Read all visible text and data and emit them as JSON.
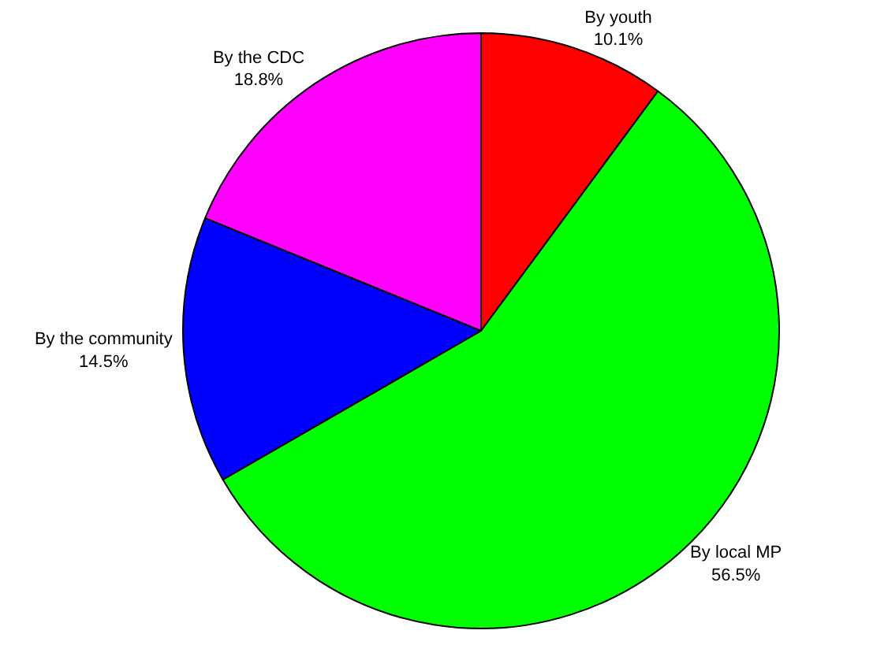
{
  "chart_data": {
    "type": "pie",
    "categories": [
      "By youth",
      "By local MP",
      "By the community",
      "By the CDC"
    ],
    "values": [
      10.1,
      56.5,
      14.5,
      18.8
    ],
    "value_labels": [
      "10.1%",
      "56.5%",
      "14.5%",
      "18.8%"
    ],
    "colors": [
      "#ff0000",
      "#00ff00",
      "#0000ff",
      "#ff00ff"
    ],
    "legend": false
  }
}
